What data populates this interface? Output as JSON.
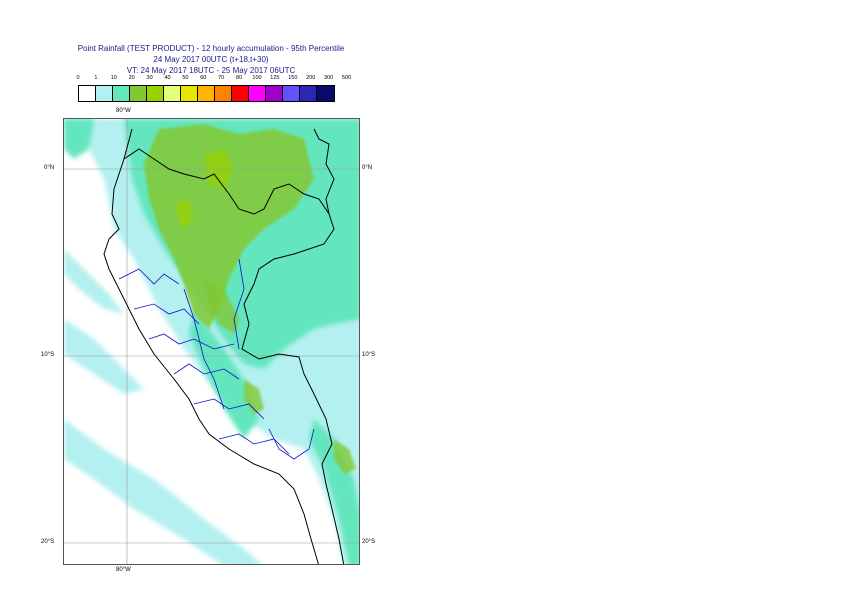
{
  "title": {
    "line1": "Point Rainfall (TEST PRODUCT) - 12 hourly accumulation - 95th Percentile",
    "line2": "24 May 2017 00UTC (t+18,t+30)",
    "line3": "VT: 24 May 2017 18UTC - 25 May 2017 06UTC"
  },
  "legend": {
    "ticks": [
      "0",
      "1",
      "10",
      "20",
      "30",
      "40",
      "50",
      "60",
      "70",
      "80",
      "100",
      "125",
      "150",
      "200",
      "300",
      "500"
    ],
    "colors": [
      "#ffffff",
      "#b4f0f0",
      "#64e6be",
      "#82c832",
      "#9ad200",
      "#e6ff78",
      "#e6e600",
      "#ffb400",
      "#ff8200",
      "#ff0000",
      "#ff00ff",
      "#a000c8",
      "#6450ff",
      "#2828b4",
      "#0a0a6e"
    ]
  },
  "map": {
    "lon_top": "80°W",
    "lon_bottom": "80°W",
    "lat_0_left": "0°N",
    "lat_0_right": "0°N",
    "lat_10_left": "10°S",
    "lat_10_right": "10°S",
    "lat_20_left": "20°S",
    "lat_20_right": "20°S"
  }
}
